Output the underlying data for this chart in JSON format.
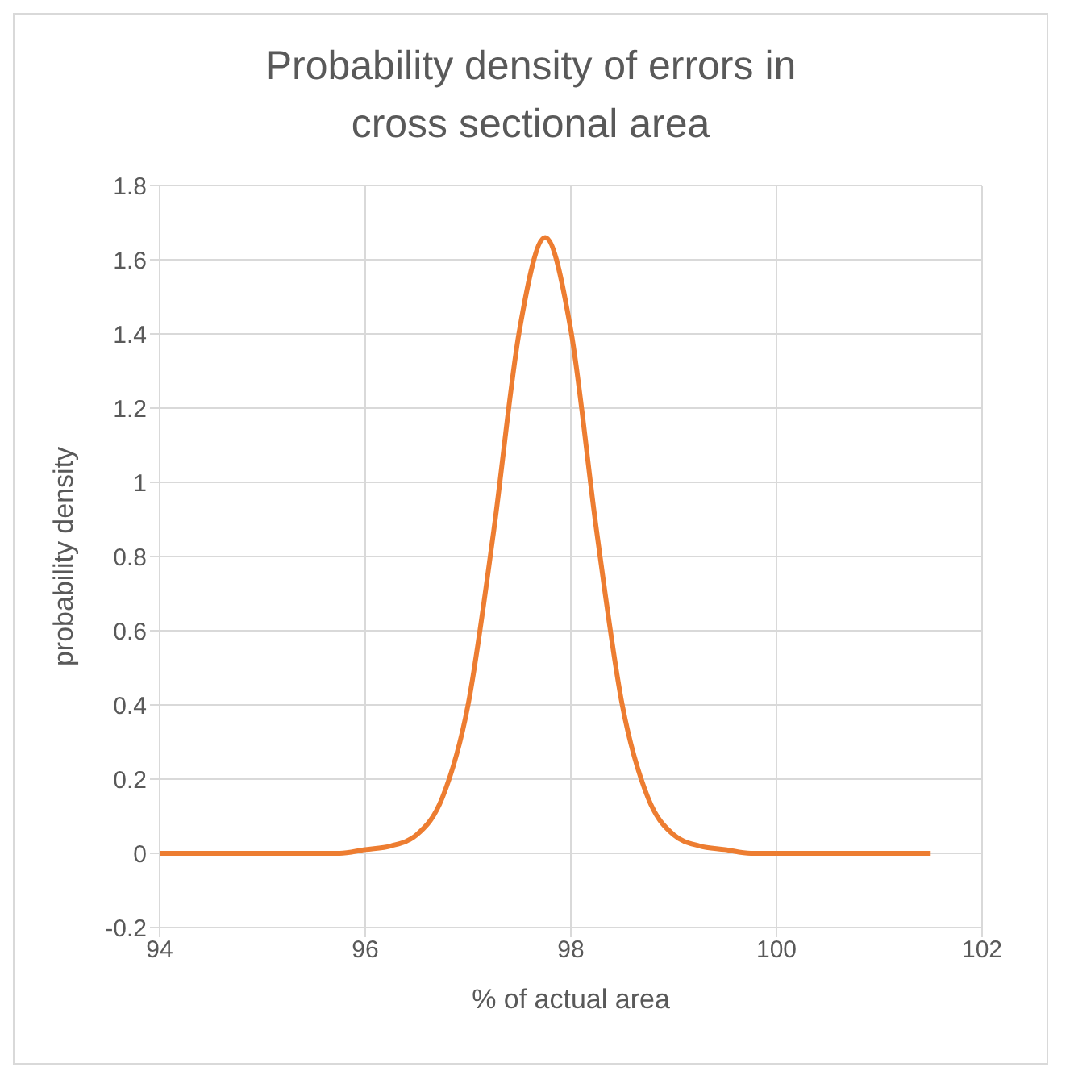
{
  "chart_data": {
    "type": "line",
    "title": "Probability density of errors in cross sectional area",
    "xlabel": "% of actual area",
    "ylabel": "probability density",
    "x": [
      94,
      95,
      95.5,
      95.75,
      96,
      96.25,
      96.5,
      96.75,
      97,
      97.25,
      97.5,
      97.75,
      98,
      98.25,
      98.5,
      98.75,
      99,
      99.25,
      99.5,
      99.75,
      100,
      101,
      101.5
    ],
    "series": [
      {
        "color": "#ed7d31",
        "values": [
          0,
          0,
          0,
          0,
          0.01,
          0.02,
          0.05,
          0.15,
          0.4,
          0.87,
          1.41,
          1.66,
          1.41,
          0.87,
          0.4,
          0.15,
          0.05,
          0.02,
          0.01,
          0,
          0,
          0,
          0
        ]
      }
    ],
    "xlim": [
      94,
      102
    ],
    "xticks": [
      94,
      96,
      98,
      100,
      102
    ],
    "ylim": [
      -0.2,
      1.8
    ],
    "yticks": [
      -0.2,
      0,
      0.2,
      0.4,
      0.6,
      0.8,
      1,
      1.2,
      1.4,
      1.6,
      1.8
    ],
    "grid": true,
    "marker": "none",
    "line_style": "solid",
    "legend": false
  }
}
